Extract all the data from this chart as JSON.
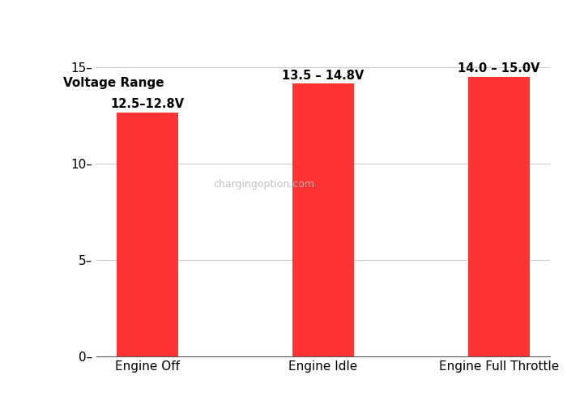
{
  "categories": [
    "Engine Off",
    "Engine Idle",
    "Engine Full Throttle"
  ],
  "values": [
    12.65,
    14.15,
    14.5
  ],
  "bar_color": "#ff3333",
  "bar_width": 0.35,
  "annotations": [
    "12.5–12.8V",
    "13.5 – 14.8V",
    "14.0 – 15.0V"
  ],
  "ylabel": "Voltage Range",
  "yticks": [
    0,
    5,
    10,
    15
  ],
  "ytick_labels": [
    "0–",
    "5–",
    "10–",
    "15–"
  ],
  "ylim": [
    0,
    16.8
  ],
  "watermark": "chargingoption.com",
  "watermark_color": "#bbbbbb",
  "background_color": "#ffffff",
  "annotation_fontsize": 10.5,
  "ylabel_fontsize": 11,
  "xlabel_fontsize": 11,
  "tick_fontsize": 11
}
